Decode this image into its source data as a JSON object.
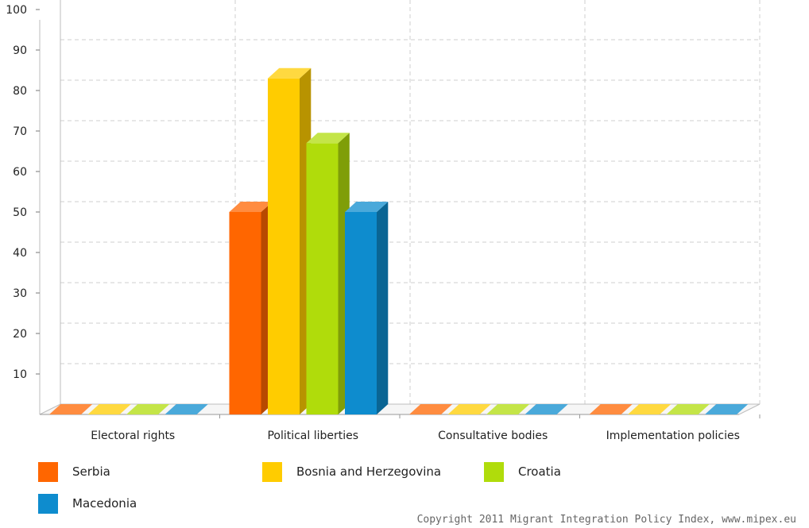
{
  "chart_data": {
    "type": "bar",
    "categories": [
      "Electoral rights",
      "Political liberties",
      "Consultative bodies",
      "Implementation policies"
    ],
    "series": [
      {
        "name": "Serbia",
        "color": "#ff6600",
        "values": [
          0,
          50,
          0,
          0
        ]
      },
      {
        "name": "Bosnia and Herzegovina",
        "color": "#ffcc00",
        "values": [
          0,
          83,
          0,
          0
        ]
      },
      {
        "name": "Croatia",
        "color": "#b0dc0b",
        "values": [
          0,
          67,
          0,
          0
        ]
      },
      {
        "name": "Macedonia",
        "color": "#0e8cce",
        "values": [
          0,
          50,
          0,
          0
        ]
      }
    ],
    "ylim": [
      0,
      100
    ],
    "yticks": [
      10,
      20,
      30,
      40,
      50,
      60,
      70,
      80,
      90,
      100
    ],
    "grid": true,
    "legend_position": "bottom-left",
    "style": "3d"
  },
  "copyright": "Copyright 2011 Migrant Integration Policy Index, www.mipex.eu"
}
